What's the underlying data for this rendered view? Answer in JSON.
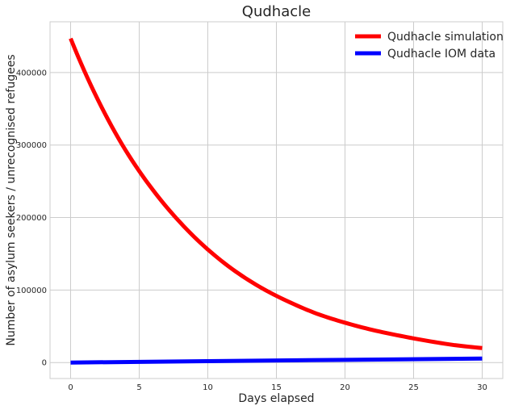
{
  "chart_data": {
    "type": "line",
    "title": "Qudhacle",
    "xlabel": "Days elapsed",
    "ylabel": "Number of asylum seekers / unrecognised refugees",
    "xlim": [
      -1.5,
      31.5
    ],
    "ylim": [
      -22000,
      470000
    ],
    "xticks": [
      0,
      5,
      10,
      15,
      20,
      25,
      30
    ],
    "yticks": [
      0,
      100000,
      200000,
      300000,
      400000
    ],
    "grid": true,
    "legend_position": "top-right",
    "series": [
      {
        "name": "Qudhacle simulation",
        "color": "#ff0000",
        "x": [
          0,
          2,
          4,
          6,
          8,
          10,
          12,
          14,
          16,
          18,
          20,
          22,
          24,
          26,
          28,
          30
        ],
        "y": [
          447000,
          362000,
          293000,
          238000,
          193000,
          156000,
          126000,
          102000,
          83000,
          67000,
          55000,
          45000,
          37000,
          30000,
          24000,
          20000
        ]
      },
      {
        "name": "Qudhacle IOM data",
        "color": "#0000ff",
        "x": [
          0,
          10,
          20,
          30
        ],
        "y": [
          0,
          2000,
          3800,
          5500
        ]
      }
    ]
  }
}
